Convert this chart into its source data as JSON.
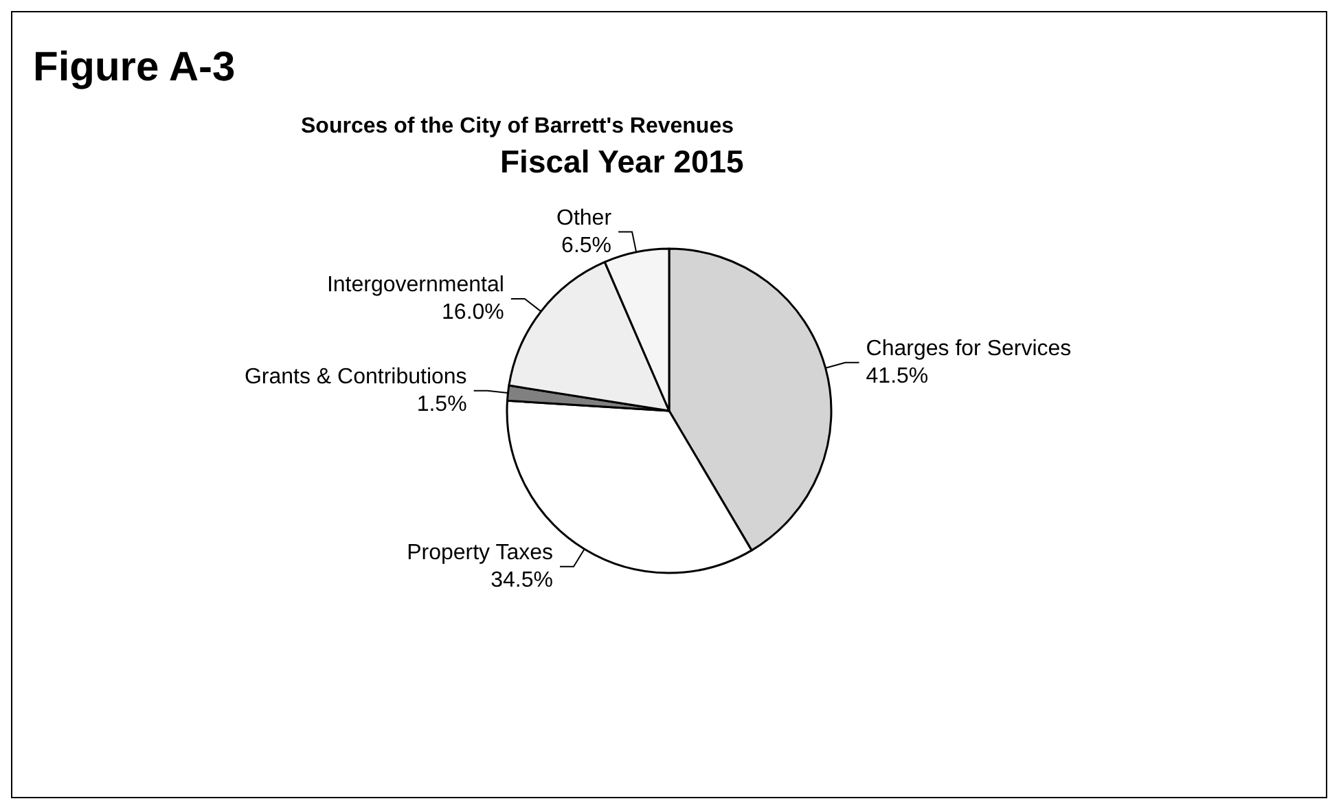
{
  "chart_data": {
    "type": "pie",
    "title": "Figure A-3",
    "subtitle": "Sources of the City of Barrett's Revenues",
    "annotations": [
      "Fiscal Year 2015"
    ],
    "categories": [
      "Charges for Services",
      "Property Taxes",
      "Grants & Contributions",
      "Intergovernmental",
      "Other"
    ],
    "values": [
      41.5,
      34.5,
      1.5,
      16.0,
      6.5
    ],
    "value_labels": [
      "41.5%",
      "34.5%",
      "1.5%",
      "16.0%",
      "6.5%"
    ],
    "colors": [
      "#d4d4d4",
      "#ffffff",
      "#808080",
      "#eeeeee",
      "#f5f5f5"
    ],
    "legend": false
  }
}
